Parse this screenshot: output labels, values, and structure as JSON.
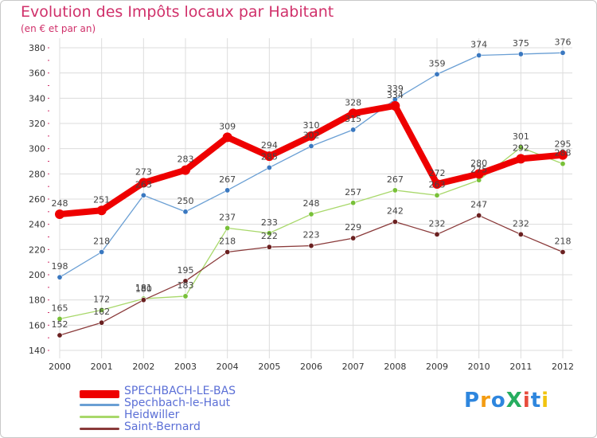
{
  "title": "Evolution des Impôts locaux par Habitant",
  "subtitle": "(en € et par an)",
  "logo": {
    "text": "ProXiti",
    "letters": [
      "P",
      "r",
      "o",
      "X",
      "i",
      "t",
      "i"
    ],
    "colors": [
      "#2e86de",
      "#f39c12",
      "#2e86de",
      "#27ae60",
      "#e74c3c",
      "#2e86de",
      "#f1c40f"
    ]
  },
  "chart_data": {
    "type": "line",
    "title": "Evolution des Impôts locaux par Habitant",
    "subtitle": "(en € et par an)",
    "xlabel": "",
    "ylabel": "",
    "x": [
      "2000",
      "2001",
      "2002",
      "2003",
      "2004",
      "2005",
      "2006",
      "2007",
      "2008",
      "2009",
      "2010",
      "2011",
      "2012"
    ],
    "ylim": [
      140,
      380
    ],
    "yticks": [
      140,
      160,
      180,
      200,
      220,
      240,
      260,
      280,
      300,
      320,
      340,
      360,
      380
    ],
    "grid": true,
    "legend": "bottom-left",
    "series": [
      {
        "name": "Spechbach-le-Haut",
        "color": "#6a9fd4",
        "marker": "#3a78c0",
        "values": [
          198,
          218,
          263,
          250,
          267,
          285,
          302,
          315,
          339,
          359,
          374,
          375,
          376
        ]
      },
      {
        "name": "Heidwiller",
        "color": "#a8d86a",
        "marker": "#78c038",
        "values": [
          165,
          172,
          181,
          183,
          237,
          233,
          248,
          257,
          267,
          263,
          275,
          301,
          288
        ]
      },
      {
        "name": "Saint-Bernard",
        "color": "#8a3a3a",
        "marker": "#6a2020",
        "values": [
          152,
          162,
          180,
          195,
          218,
          222,
          223,
          229,
          242,
          232,
          247,
          232,
          218
        ]
      },
      {
        "name": "SPECHBACH-LE-BAS",
        "color": "#ee0000",
        "marker": "#ee0000",
        "values": [
          248,
          251,
          273,
          283,
          309,
          294,
          310,
          328,
          334,
          272,
          280,
          292,
          295
        ]
      }
    ]
  },
  "legend": [
    {
      "label": "SPECHBACH-LE-BAS",
      "color": "#ee0000"
    },
    {
      "label": "Spechbach-le-Haut",
      "color": "#6a9fd4"
    },
    {
      "label": "Heidwiller",
      "color": "#a8d86a"
    },
    {
      "label": "Saint-Bernard",
      "color": "#8a3a3a"
    }
  ]
}
